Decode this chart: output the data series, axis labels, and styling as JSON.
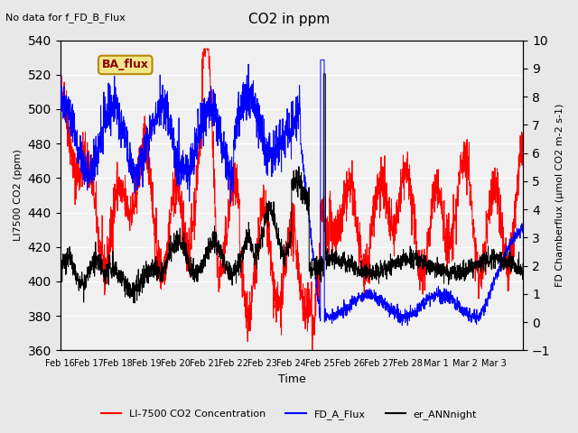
{
  "title": "CO2 in ppm",
  "top_left_text": "No data for f_FD_B_Flux",
  "legend_box_text": "BA_flux",
  "xlabel": "Time",
  "ylabel_left": "LI7500 CO2 (ppm)",
  "ylabel_right": "FD Chamberflux (μmol CO2 m-2 s-1)",
  "left_ylim": [
    360,
    540
  ],
  "right_ylim": [
    -1.0,
    10.0
  ],
  "left_yticks": [
    360,
    380,
    400,
    420,
    440,
    460,
    480,
    500,
    520,
    540
  ],
  "right_yticks": [
    -1.0,
    0.0,
    1.0,
    2.0,
    3.0,
    4.0,
    5.0,
    6.0,
    7.0,
    8.0,
    9.0,
    10.0
  ],
  "xtick_labels": [
    "Feb 16",
    "Feb 17",
    "Feb 18",
    "Feb 19",
    "Feb 20",
    "Feb 21",
    "Feb 22",
    "Feb 23",
    "Feb 24",
    "Feb 25",
    "Feb 26",
    "Feb 27",
    "Feb 28",
    "Mar 1",
    "Mar 2",
    "Mar 3"
  ],
  "line_colors": {
    "red": "#ff0000",
    "blue": "#0000ff",
    "black": "#000000"
  },
  "legend_entries": [
    {
      "label": "LI-7500 CO2 Concentration",
      "color": "#ff0000"
    },
    {
      "label": "FD_A_Flux",
      "color": "#0000ff"
    },
    {
      "label": "er_ANNnight",
      "color": "#000000"
    }
  ],
  "bg_color": "#e8e8e8",
  "plot_bg_color": "#f0f0f0",
  "grid_color": "#ffffff"
}
